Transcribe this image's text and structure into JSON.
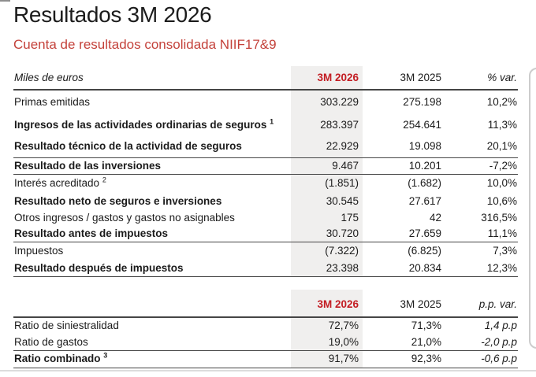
{
  "header": {
    "title": "Resultados 3M 2026",
    "subtitle": "Cuenta de resultados consolidada NIIF17&9"
  },
  "income_table": {
    "unit_label": "Miles de euros",
    "col_2026": "3M 2026",
    "col_2025": "3M 2025",
    "col_var": "% var.",
    "rows": [
      {
        "label": "Primas emitidas",
        "v2026": "303.229",
        "v2025": "275.198",
        "var": "10,2%"
      },
      {
        "label": "Ingresos de las actividades ordinarias de seguros",
        "sup": "1",
        "v2026": "283.397",
        "v2025": "254.641",
        "var": "11,3%"
      },
      {
        "label": "Resultado técnico de la actividad de seguros",
        "v2026": "22.929",
        "v2025": "19.098",
        "var": "20,1%"
      },
      {
        "label": "Resultado de las inversiones",
        "v2026": "9.467",
        "v2025": "10.201",
        "var": "-7,2%"
      },
      {
        "label": "Interés acreditado",
        "sup": "2",
        "v2026": "(1.851)",
        "v2025": "(1.682)",
        "var": "10,0%"
      },
      {
        "label": "Resultado neto de seguros e inversiones",
        "v2026": "30.545",
        "v2025": "27.617",
        "var": "10,6%"
      },
      {
        "label": "Otros ingresos / gastos y gastos no asignables",
        "v2026": "175",
        "v2025": "42",
        "var": "316,5%"
      },
      {
        "label": "Resultado antes de impuestos",
        "v2026": "30.720",
        "v2025": "27.659",
        "var": "11,1%"
      },
      {
        "label": "Impuestos",
        "v2026": "(7.322)",
        "v2025": "(6.825)",
        "var": "7,3%"
      },
      {
        "label": "Resultado después de impuestos",
        "v2026": "23.398",
        "v2025": "20.834",
        "var": "12,3%"
      }
    ]
  },
  "ratio_table": {
    "col_2026": "3M 2026",
    "col_2025": "3M 2025",
    "col_var": "p.p. var.",
    "rows": [
      {
        "label": "Ratio de siniestralidad",
        "v2026": "72,7%",
        "v2025": "71,3%",
        "var": "1,4 p.p"
      },
      {
        "label": "Ratio de gastos",
        "v2026": "19,0%",
        "v2025": "21,0%",
        "var": "-2,0 p.p"
      },
      {
        "label": "Ratio combinado",
        "sup": "3",
        "v2026": "91,7%",
        "v2025": "92,3%",
        "var": "-0,6 p.p"
      }
    ]
  },
  "colors": {
    "accent_red": "#c31d23",
    "subtitle_red": "#c4423b",
    "highlight_bg": "#f0efee",
    "rule_dark": "#454545",
    "rule_light": "#dcdcdc",
    "card_border": "#cccccc"
  }
}
